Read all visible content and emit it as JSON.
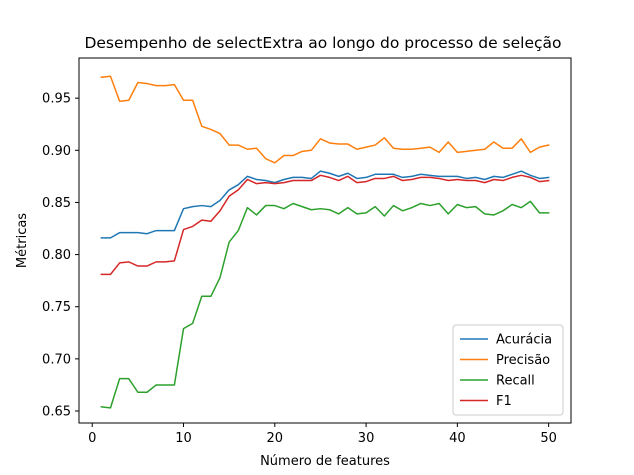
{
  "chart_data": {
    "type": "line",
    "title": "Desempenho de selectExtra ao longo do processo de seleção",
    "xlabel": "Número de features",
    "ylabel": "Métricas",
    "xlim": [
      -1.45,
      52.45
    ],
    "ylim": [
      0.6385,
      0.9885
    ],
    "xticks": [
      0,
      10,
      20,
      30,
      40,
      50
    ],
    "xtick_labels": [
      "0",
      "10",
      "20",
      "30",
      "40",
      "50"
    ],
    "yticks": [
      0.65,
      0.7,
      0.75,
      0.8,
      0.85,
      0.9,
      0.95
    ],
    "ytick_labels": [
      "0.65",
      "0.70",
      "0.75",
      "0.80",
      "0.85",
      "0.90",
      "0.95"
    ],
    "grid": false,
    "legend_position": "lower-right",
    "x": [
      1,
      2,
      3,
      4,
      5,
      6,
      7,
      8,
      9,
      10,
      11,
      12,
      13,
      14,
      15,
      16,
      17,
      18,
      19,
      20,
      21,
      22,
      23,
      24,
      25,
      26,
      27,
      28,
      29,
      30,
      31,
      32,
      33,
      34,
      35,
      36,
      37,
      38,
      39,
      40,
      41,
      42,
      43,
      44,
      45,
      46,
      47,
      48,
      49,
      50
    ],
    "series": [
      {
        "name": "Acurácia",
        "color": "#1f77b4",
        "values": [
          0.816,
          0.816,
          0.821,
          0.821,
          0.821,
          0.82,
          0.823,
          0.823,
          0.823,
          0.844,
          0.846,
          0.847,
          0.846,
          0.852,
          0.862,
          0.867,
          0.875,
          0.872,
          0.871,
          0.869,
          0.872,
          0.874,
          0.874,
          0.873,
          0.88,
          0.878,
          0.875,
          0.878,
          0.873,
          0.874,
          0.877,
          0.877,
          0.877,
          0.874,
          0.875,
          0.877,
          0.876,
          0.875,
          0.875,
          0.875,
          0.873,
          0.874,
          0.872,
          0.875,
          0.874,
          0.877,
          0.88,
          0.876,
          0.873,
          0.874
        ]
      },
      {
        "name": "Precisão",
        "color": "#ff7f0e",
        "values": [
          0.97,
          0.971,
          0.947,
          0.948,
          0.965,
          0.964,
          0.962,
          0.962,
          0.963,
          0.948,
          0.948,
          0.923,
          0.92,
          0.916,
          0.905,
          0.905,
          0.901,
          0.902,
          0.892,
          0.888,
          0.895,
          0.895,
          0.899,
          0.9,
          0.911,
          0.907,
          0.906,
          0.906,
          0.901,
          0.903,
          0.905,
          0.912,
          0.902,
          0.901,
          0.901,
          0.902,
          0.903,
          0.898,
          0.908,
          0.898,
          0.899,
          0.9,
          0.901,
          0.908,
          0.902,
          0.902,
          0.911,
          0.898,
          0.903,
          0.905
        ]
      },
      {
        "name": "Recall",
        "color": "#2ca02c",
        "values": [
          0.654,
          0.653,
          0.681,
          0.681,
          0.668,
          0.668,
          0.675,
          0.675,
          0.675,
          0.729,
          0.734,
          0.76,
          0.76,
          0.778,
          0.812,
          0.823,
          0.845,
          0.838,
          0.847,
          0.847,
          0.844,
          0.849,
          0.846,
          0.843,
          0.844,
          0.843,
          0.839,
          0.845,
          0.839,
          0.84,
          0.846,
          0.837,
          0.847,
          0.842,
          0.845,
          0.849,
          0.847,
          0.849,
          0.839,
          0.848,
          0.845,
          0.846,
          0.839,
          0.838,
          0.842,
          0.848,
          0.845,
          0.851,
          0.84,
          0.84
        ]
      },
      {
        "name": "F1",
        "color": "#d62728",
        "values": [
          0.781,
          0.781,
          0.792,
          0.793,
          0.789,
          0.789,
          0.793,
          0.793,
          0.794,
          0.824,
          0.827,
          0.833,
          0.832,
          0.842,
          0.856,
          0.862,
          0.872,
          0.868,
          0.869,
          0.868,
          0.869,
          0.871,
          0.871,
          0.871,
          0.876,
          0.874,
          0.871,
          0.875,
          0.869,
          0.87,
          0.873,
          0.873,
          0.875,
          0.871,
          0.872,
          0.874,
          0.874,
          0.873,
          0.871,
          0.872,
          0.871,
          0.871,
          0.869,
          0.872,
          0.871,
          0.874,
          0.876,
          0.874,
          0.87,
          0.871
        ]
      }
    ]
  }
}
